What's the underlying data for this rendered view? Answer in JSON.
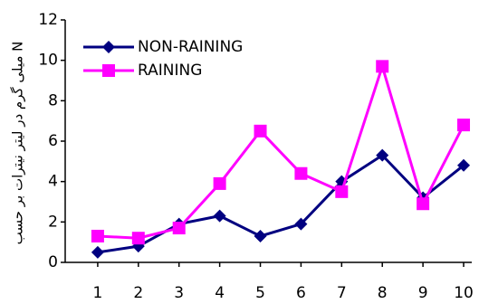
{
  "chart_data": {
    "type": "line",
    "y_label": "میلی گرم در لیتر نیترات بر حسب N",
    "x": [
      1,
      2,
      3,
      4,
      5,
      6,
      7,
      8,
      9,
      10
    ],
    "xlim": [
      0.2,
      10.2
    ],
    "xticks": [
      1,
      2,
      3,
      4,
      5,
      6,
      7,
      8,
      9,
      10
    ],
    "ylim": [
      0,
      12
    ],
    "yticks": [
      0,
      2,
      4,
      6,
      8,
      10,
      12
    ],
    "grid": false,
    "legend": "upper left",
    "series": [
      {
        "name": "NON-RAINING",
        "color": "#000080",
        "marker": "diamond",
        "values": [
          0.5,
          0.8,
          1.9,
          2.3,
          1.3,
          1.9,
          4.0,
          5.3,
          3.2,
          4.8
        ]
      },
      {
        "name": "RAINING",
        "color": "#ff00ff",
        "marker": "square",
        "values": [
          1.3,
          1.2,
          1.7,
          3.9,
          6.5,
          4.4,
          3.5,
          9.7,
          2.9,
          6.8
        ]
      }
    ]
  }
}
